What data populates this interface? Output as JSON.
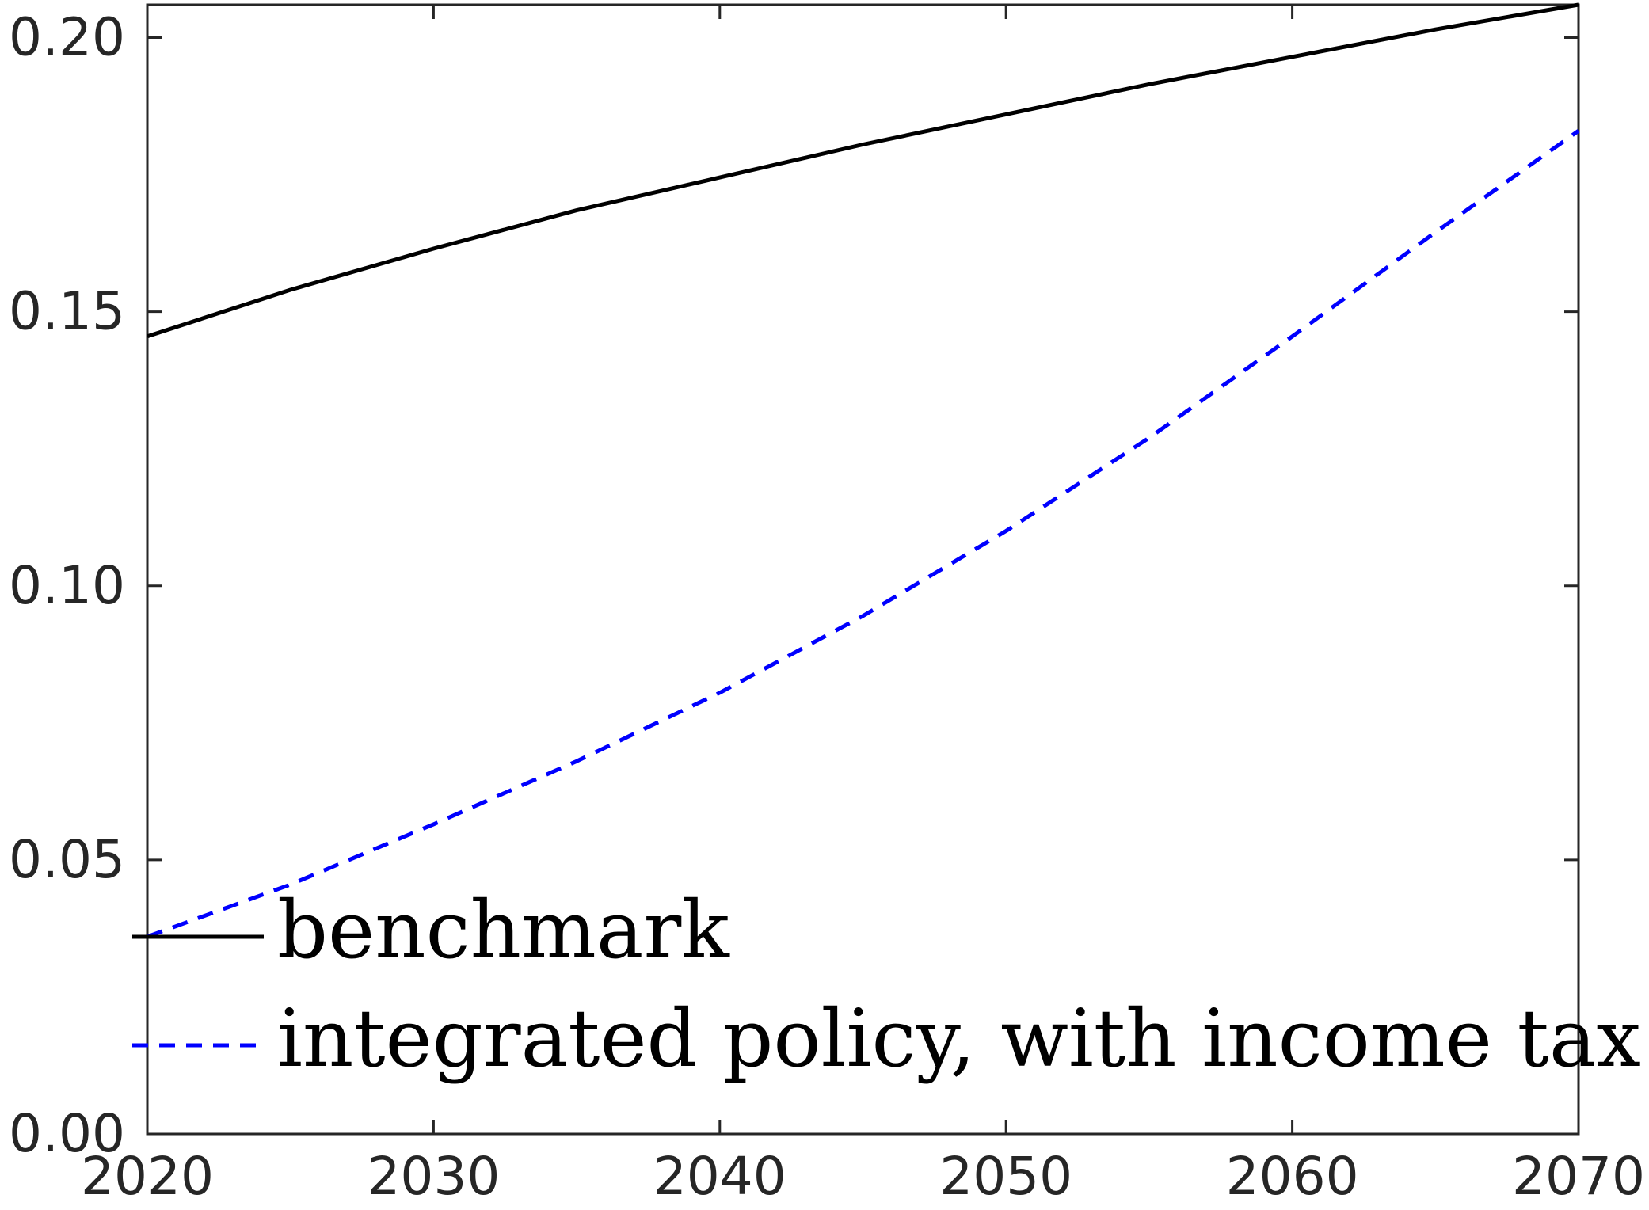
{
  "chart_data": {
    "type": "line",
    "title": "",
    "xlabel": "",
    "ylabel": "",
    "xlim": [
      2020,
      2070
    ],
    "ylim": [
      0.0,
      0.206
    ],
    "grid": false,
    "legend_position": "bottom-left",
    "x_ticks": [
      "2020",
      "2030",
      "2040",
      "2050",
      "2060",
      "2070"
    ],
    "y_ticks": [
      "0.00",
      "0.05",
      "0.10",
      "0.15",
      "0.20"
    ],
    "x": [
      2020,
      2025,
      2030,
      2035,
      2040,
      2045,
      2050,
      2055,
      2060,
      2065,
      2070
    ],
    "series": [
      {
        "name": "benchmark",
        "style": "solid",
        "color": "#000000",
        "values": [
          0.1455,
          0.154,
          0.1615,
          0.1685,
          0.1745,
          0.1805,
          0.186,
          0.1915,
          0.1965,
          0.2015,
          0.206
        ]
      },
      {
        "name": "integrated policy, with income tax",
        "style": "dashed",
        "color": "#0000ff",
        "values": [
          0.036,
          0.0455,
          0.0565,
          0.068,
          0.0805,
          0.0945,
          0.11,
          0.127,
          0.1455,
          0.1645,
          0.183
        ]
      }
    ]
  }
}
